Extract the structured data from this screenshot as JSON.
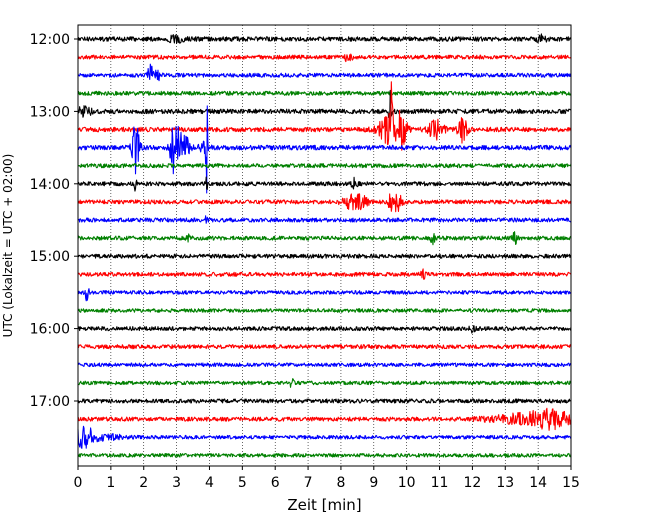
{
  "chart_data": {
    "type": "line",
    "title": "",
    "xlabel": "Zeit  [min]",
    "ylabel": "UTC (Lokalzeit = UTC + 02:00)",
    "xlim": [
      0,
      15
    ],
    "xticks": [
      0,
      1,
      2,
      3,
      4,
      5,
      6,
      7,
      8,
      9,
      10,
      11,
      12,
      13,
      14,
      15
    ],
    "x_grid": true,
    "y_start_time": "12:00",
    "trace_interval_min": 15,
    "ytick_labels": [
      "12:00",
      "13:00",
      "14:00",
      "15:00",
      "16:00",
      "17:00"
    ],
    "colors": [
      "#000000",
      "#ff0000",
      "#0000ff",
      "#008000"
    ],
    "traces": [
      {
        "start": "12:00",
        "color": "#000000",
        "noise": 2.2,
        "events": [
          [
            3.1,
            0.25,
            3
          ],
          [
            14.1,
            0.1,
            3
          ]
        ]
      },
      {
        "start": "12:15",
        "color": "#ff0000",
        "noise": 2.0,
        "events": [
          [
            8.2,
            0.1,
            3
          ]
        ]
      },
      {
        "start": "12:30",
        "color": "#0000ff",
        "noise": 2.0,
        "events": [
          [
            2.2,
            0.05,
            12
          ],
          [
            2.4,
            0.08,
            5
          ]
        ]
      },
      {
        "start": "12:45",
        "color": "#008000",
        "noise": 2.0,
        "events": []
      },
      {
        "start": "13:00",
        "color": "#000000",
        "noise": 2.3,
        "events": [
          [
            9.5,
            0.03,
            40
          ],
          [
            0.2,
            0.15,
            4
          ]
        ]
      },
      {
        "start": "13:15",
        "color": "#ff0000",
        "noise": 2.3,
        "events": [
          [
            9.45,
            0.2,
            14
          ],
          [
            9.85,
            0.1,
            18
          ],
          [
            10.9,
            0.15,
            10
          ],
          [
            11.7,
            0.1,
            12
          ],
          [
            9.55,
            0.03,
            45
          ]
        ]
      },
      {
        "start": "13:30",
        "color": "#0000ff",
        "noise": 2.3,
        "events": [
          [
            1.75,
            0.08,
            24
          ],
          [
            2.95,
            0.1,
            26
          ],
          [
            3.2,
            0.15,
            12
          ],
          [
            3.8,
            0.1,
            10
          ],
          [
            3.92,
            0.02,
            55
          ]
        ]
      },
      {
        "start": "13:45",
        "color": "#008000",
        "noise": 2.0,
        "events": []
      },
      {
        "start": "14:00",
        "color": "#000000",
        "noise": 2.0,
        "events": [
          [
            8.4,
            0.08,
            5
          ],
          [
            1.75,
            0.02,
            12
          ],
          [
            3.92,
            0.02,
            12
          ]
        ]
      },
      {
        "start": "14:15",
        "color": "#ff0000",
        "noise": 2.0,
        "events": [
          [
            8.45,
            0.25,
            8
          ],
          [
            9.7,
            0.1,
            10
          ],
          [
            9.5,
            0.03,
            14
          ]
        ]
      },
      {
        "start": "14:30",
        "color": "#0000ff",
        "noise": 2.0,
        "events": [
          [
            3.92,
            0.02,
            14
          ]
        ]
      },
      {
        "start": "14:45",
        "color": "#008000",
        "noise": 2.0,
        "events": [
          [
            3.35,
            0.05,
            5
          ],
          [
            10.8,
            0.05,
            5
          ],
          [
            13.3,
            0.05,
            6
          ]
        ]
      },
      {
        "start": "15:00",
        "color": "#000000",
        "noise": 2.0,
        "events": []
      },
      {
        "start": "15:15",
        "color": "#ff0000",
        "noise": 2.0,
        "events": [
          [
            10.5,
            0.05,
            4
          ]
        ]
      },
      {
        "start": "15:30",
        "color": "#0000ff",
        "noise": 1.8,
        "events": [
          [
            0.25,
            0.05,
            8
          ]
        ]
      },
      {
        "start": "15:45",
        "color": "#008000",
        "noise": 1.8,
        "events": []
      },
      {
        "start": "16:00",
        "color": "#000000",
        "noise": 2.0,
        "events": [
          [
            12.0,
            0.05,
            4
          ]
        ]
      },
      {
        "start": "16:15",
        "color": "#ff0000",
        "noise": 2.0,
        "events": []
      },
      {
        "start": "16:30",
        "color": "#0000ff",
        "noise": 1.8,
        "events": []
      },
      {
        "start": "16:45",
        "color": "#008000",
        "noise": 1.8,
        "events": [
          [
            6.5,
            0.05,
            4
          ]
        ]
      },
      {
        "start": "17:00",
        "color": "#000000",
        "noise": 2.0,
        "events": []
      },
      {
        "start": "17:15",
        "color": "#ff0000",
        "noise": 2.0,
        "events": [
          [
            14.0,
            0.9,
            6
          ],
          [
            14.4,
            0.3,
            4
          ]
        ]
      },
      {
        "start": "17:30",
        "color": "#0000ff",
        "noise": 1.8,
        "events": [
          [
            0.2,
            0.2,
            9
          ],
          [
            0.6,
            0.5,
            3
          ]
        ]
      },
      {
        "start": "17:45",
        "color": "#008000",
        "noise": 1.8,
        "events": []
      }
    ]
  }
}
